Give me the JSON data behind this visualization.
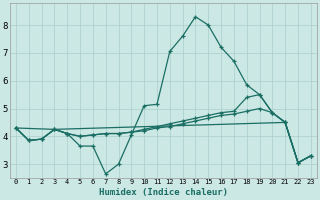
{
  "xlabel": "Humidex (Indice chaleur)",
  "bg_color": "#cce8e4",
  "grid_color": "#aacfcc",
  "line_color": "#1a6e64",
  "xlim": [
    -0.5,
    23.5
  ],
  "ylim": [
    2.5,
    8.8
  ],
  "yticks": [
    3,
    4,
    5,
    6,
    7,
    8
  ],
  "xticks": [
    0,
    1,
    2,
    3,
    4,
    5,
    6,
    7,
    8,
    9,
    10,
    11,
    12,
    13,
    14,
    15,
    16,
    17,
    18,
    19,
    20,
    21,
    22,
    23
  ],
  "line1_x": [
    0,
    1,
    2,
    3,
    4,
    5,
    6,
    7,
    8,
    9,
    10,
    11,
    12,
    13,
    14,
    15,
    16,
    17,
    18,
    19,
    20,
    21,
    22,
    23
  ],
  "line1_y": [
    4.3,
    3.85,
    3.9,
    4.25,
    4.1,
    3.65,
    3.65,
    2.65,
    3.0,
    4.05,
    5.1,
    5.15,
    7.05,
    7.6,
    8.3,
    8.0,
    7.2,
    6.7,
    5.85,
    5.5,
    4.85,
    4.5,
    3.05,
    3.3
  ],
  "line2_x": [
    0,
    3,
    21,
    22,
    23
  ],
  "line2_y": [
    4.3,
    4.25,
    4.5,
    3.05,
    3.3
  ],
  "line3_x": [
    0,
    1,
    2,
    3,
    4,
    5,
    6,
    7,
    8,
    9,
    10,
    11,
    12,
    13,
    14,
    15,
    16,
    17,
    18,
    19,
    20,
    21,
    22,
    23
  ],
  "line3_y": [
    4.3,
    3.85,
    3.9,
    4.25,
    4.1,
    4.0,
    4.05,
    4.1,
    4.1,
    4.15,
    4.2,
    4.3,
    4.35,
    4.45,
    4.55,
    4.65,
    4.75,
    4.8,
    4.9,
    5.0,
    4.85,
    4.5,
    3.05,
    3.3
  ],
  "line4_x": [
    0,
    1,
    2,
    3,
    4,
    5,
    6,
    7,
    8,
    9,
    10,
    11,
    12,
    13,
    14,
    15,
    16,
    17,
    18,
    19,
    20,
    21,
    22,
    23
  ],
  "line4_y": [
    4.3,
    3.85,
    3.9,
    4.25,
    4.1,
    4.0,
    4.05,
    4.1,
    4.1,
    4.15,
    4.25,
    4.35,
    4.45,
    4.55,
    4.65,
    4.75,
    4.85,
    4.9,
    5.4,
    5.5,
    4.85,
    4.5,
    3.05,
    3.3
  ]
}
